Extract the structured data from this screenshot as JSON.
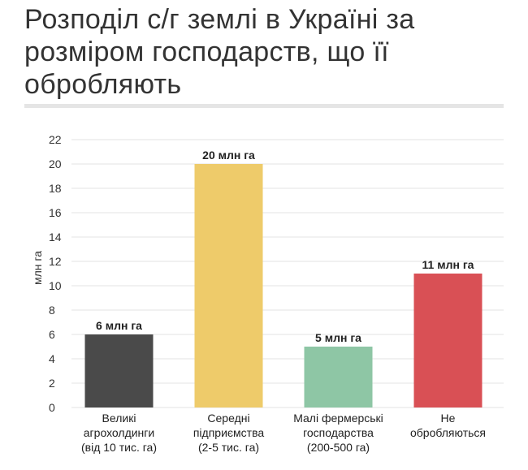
{
  "title": "Розподіл с/г землі в Україні за розміром господарств, що її обробляють",
  "chart_data": {
    "type": "bar",
    "title": "Розподіл с/г землі в Україні за розміром господарств, що її обробляють",
    "xlabel": "",
    "ylabel": "млн га",
    "ylim": [
      0,
      22
    ],
    "yticks": [
      0,
      2,
      4,
      6,
      8,
      10,
      12,
      14,
      16,
      18,
      20,
      22
    ],
    "grid": true,
    "legend": "none",
    "categories": [
      [
        "Великі",
        "агрохолдинги",
        "(від 10 тис. га)"
      ],
      [
        "Середні",
        "підприємства",
        "(2-5 тис. га)"
      ],
      [
        "Малі фермерські",
        "господарства",
        "(200-500 га)"
      ],
      [
        "Не",
        "обробляються"
      ]
    ],
    "values": [
      6,
      20,
      5,
      11
    ],
    "data_labels": [
      "6 млн га",
      "20 млн га",
      "5 млн га",
      "11 млн га"
    ],
    "colors": [
      "#4a4a4a",
      "#eecb6a",
      "#8ec6a5",
      "#d95055"
    ],
    "gridline_color": "#e3e3e3"
  }
}
